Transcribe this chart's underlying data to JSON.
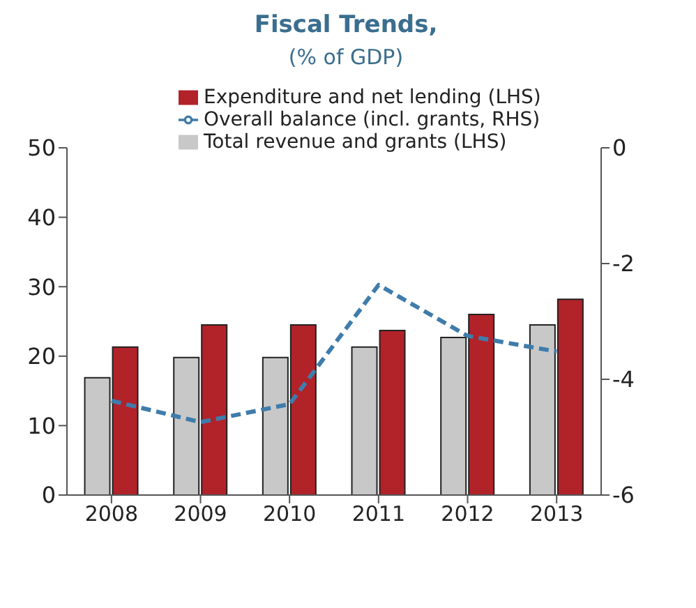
{
  "chart_data": {
    "type": "bar",
    "title": "Fiscal Trends,",
    "subtitle": "(% of GDP)",
    "categories": [
      "2008",
      "2009",
      "2010",
      "2011",
      "2012",
      "2013"
    ],
    "series": [
      {
        "name": "Total revenue and grants (LHS)",
        "color": "#c8c8c8",
        "values": [
          16.9,
          19.8,
          19.8,
          21.3,
          22.7,
          24.5
        ]
      },
      {
        "name": "Expenditure and net lending (LHS)",
        "color": "#b22229",
        "values": [
          21.3,
          24.5,
          24.5,
          23.7,
          26.0,
          28.2
        ]
      },
      {
        "name": "Overall balance (incl. grants, RHS)",
        "type": "line",
        "axis": "y2",
        "color": "#3f7cab",
        "line_style": "dashed",
        "marker": "none",
        "values": [
          -4.37,
          -4.74,
          -4.43,
          -2.37,
          -3.25,
          -3.52
        ]
      }
    ],
    "ylim": [
      0,
      50
    ],
    "yticks": [
      0,
      10,
      20,
      30,
      40,
      50
    ],
    "y2lim": [
      -6,
      0
    ],
    "y2ticks": [
      -6,
      -4,
      -2,
      0
    ],
    "grid": false,
    "legend": "top"
  }
}
